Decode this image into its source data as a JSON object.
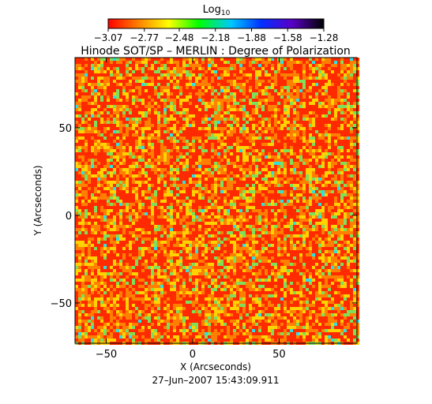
{
  "chart_data": {
    "type": "heatmap",
    "title": "Hinode SOT/SP – MERLIN : Degree of Polarization",
    "xlabel": "X (Arcseconds)",
    "ylabel": "Y (Arcseconds)",
    "xlim": [
      -68,
      95
    ],
    "ylim": [
      -73,
      90
    ],
    "x_ticks": [
      -50,
      0,
      50
    ],
    "x_tick_labels": [
      "−50",
      "0",
      "50"
    ],
    "y_ticks": [
      -50,
      0,
      50
    ],
    "y_tick_labels": [
      "−50",
      "0",
      "50"
    ],
    "colorbar": {
      "label_base": "Log",
      "label_sub": "10",
      "range": [
        -3.07,
        -1.28
      ],
      "ticks": [
        -3.07,
        -2.77,
        -2.48,
        -2.18,
        -1.88,
        -1.58,
        -1.28
      ],
      "tick_labels": [
        "−3.07",
        "−2.77",
        "−2.48",
        "−2.18",
        "−1.88",
        "−1.58",
        "−1.28"
      ],
      "colors": [
        "#ff0000",
        "#ff7f00",
        "#ffff00",
        "#00ff00",
        "#00c8ff",
        "#0030ff",
        "#5a00c8",
        "#000000"
      ]
    },
    "dominant_colors": [
      "#ff2a00",
      "#ff8000",
      "#ffd200",
      "#7ee05a",
      "#30e0e0"
    ],
    "timestamp": "27–Jun–2007 15:43:09.911"
  }
}
